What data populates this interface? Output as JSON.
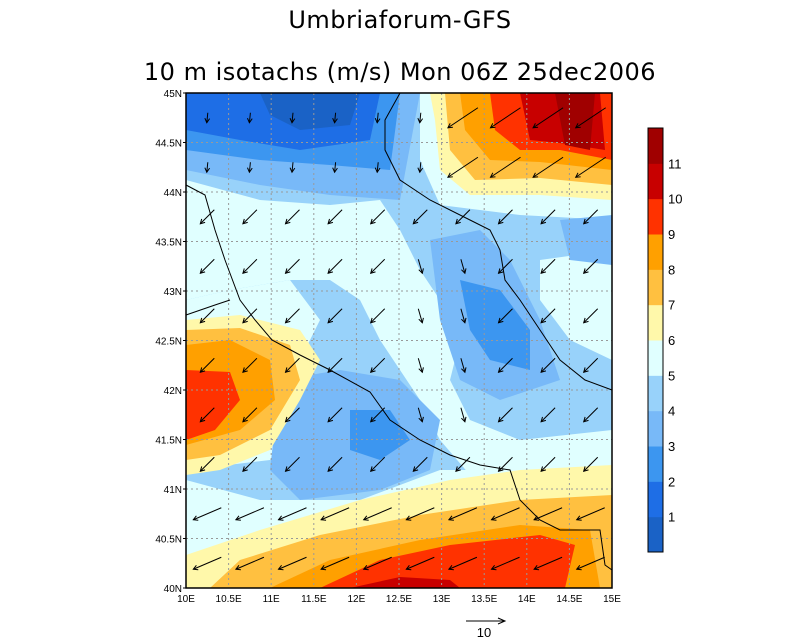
{
  "title": "Umbriaforum-GFS",
  "subtitle": "10 m isotachs (m/s) Mon 06Z 25dec2006",
  "axes": {
    "lat_labels": [
      "45N",
      "44.5N",
      "44N",
      "43.5N",
      "43N",
      "42.5N",
      "42N",
      "41.5N",
      "41N",
      "40.5N",
      "40N"
    ],
    "lon_labels": [
      "10E",
      "10.5E",
      "11E",
      "11.5E",
      "12E",
      "12.5E",
      "13E",
      "13.5E",
      "14E",
      "14.5E",
      "15E"
    ]
  },
  "colorbar": {
    "labels": [
      "1",
      "2",
      "3",
      "4",
      "5",
      "6",
      "7",
      "8",
      "9",
      "10",
      "11"
    ],
    "colors": [
      "#1a62c6",
      "#1e6ee6",
      "#3c96f0",
      "#78b9f8",
      "#98d2fa",
      "#e0ffff",
      "#fff8aa",
      "#ffc040",
      "#ffa000",
      "#ff3200",
      "#c80000",
      "#a00000"
    ]
  },
  "reference_vector": {
    "label": "10"
  }
}
